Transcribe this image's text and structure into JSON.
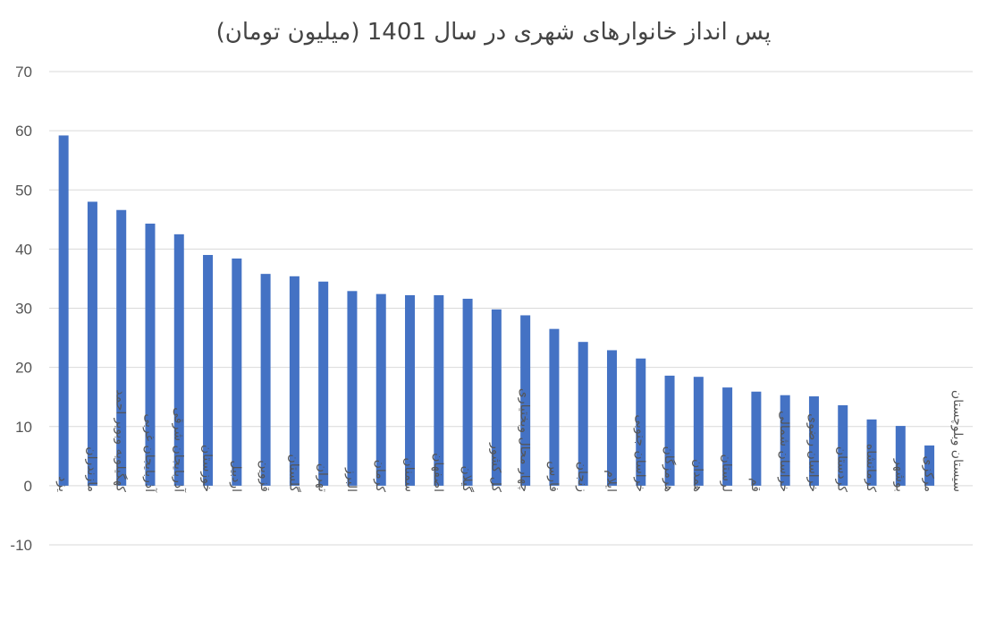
{
  "chart_data": {
    "type": "bar",
    "title": "پس انداز خانوارهای شهری در سال 1401 (میلیون تومان)",
    "xlabel": "",
    "ylabel": "",
    "ylim": [
      -10,
      70
    ],
    "yticks": [
      -10,
      0,
      10,
      20,
      30,
      40,
      50,
      60,
      70
    ],
    "grid": true,
    "legend": "none",
    "color": "#4472c4",
    "categories": [
      "یزد",
      "مازندران",
      "کهگیلویه وبویر احمد",
      "آذربایجان غربی",
      "آذربایجان شرقی",
      "خوزستان",
      "اردبیل",
      "قزوین",
      "گلستان",
      "تهران",
      "البرز",
      "کرمان",
      "سمنان",
      "اصفهان",
      "گیلان",
      "کل کشور",
      "چهار محال وبختیاری",
      "فارس",
      "زنجان",
      "ایلام",
      "خراسان جنوبی",
      "هرمزگان",
      "همدان",
      "لرستان",
      "قم",
      "خراسان شمالی",
      "خراسان رضوی",
      "کردستان",
      "کرمانشاه",
      "بوشهر",
      "مرکزی",
      "سیستان وبلوچستان"
    ],
    "values": [
      59.2,
      48.0,
      46.6,
      44.3,
      42.5,
      39.0,
      38.4,
      35.8,
      35.4,
      34.5,
      32.9,
      32.4,
      32.2,
      32.2,
      31.6,
      29.8,
      28.8,
      26.5,
      24.3,
      22.9,
      21.5,
      18.6,
      18.4,
      16.6,
      15.9,
      15.3,
      15.1,
      13.6,
      11.2,
      10.1,
      6.8,
      0
    ]
  }
}
